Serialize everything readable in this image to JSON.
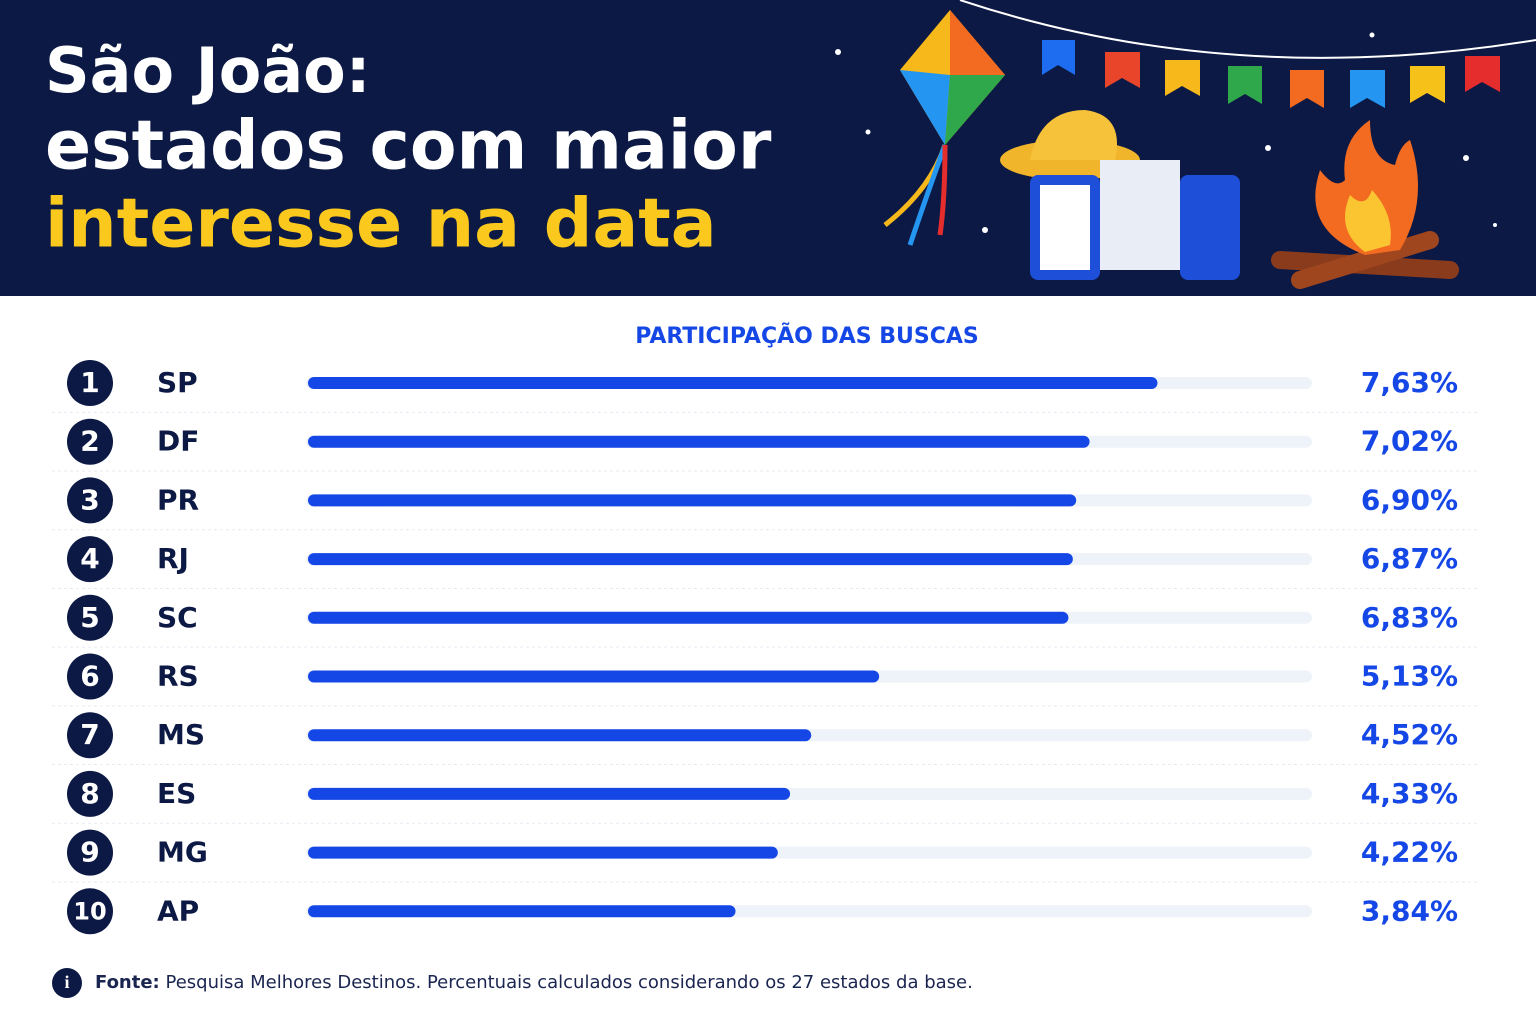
{
  "chart_data": {
    "type": "bar",
    "orientation": "horizontal",
    "title": [
      "São João:",
      "estados com maior",
      "interesse na data"
    ],
    "subtitle": "PARTICIPAÇÃO DAS BUSCAS",
    "ranks": [
      1,
      2,
      3,
      4,
      5,
      6,
      7,
      8,
      9,
      10
    ],
    "categories": [
      "SP",
      "DF",
      "PR",
      "RJ",
      "SC",
      "RS",
      "MS",
      "ES",
      "MG",
      "AP"
    ],
    "values": [
      7.63,
      7.02,
      6.9,
      6.87,
      6.83,
      5.13,
      4.52,
      4.33,
      4.22,
      3.84
    ],
    "value_labels": [
      "7,63%",
      "7,02%",
      "6,90%",
      "6,87%",
      "6,83%",
      "5,13%",
      "4,52%",
      "4,33%",
      "4,22%",
      "3,84%"
    ],
    "color": "#1447e6",
    "xlim": [
      0,
      9
    ],
    "source": {
      "label": "Fonte:",
      "text": "Pesquisa Melhores Destinos. Percentuais calculados considerando os 27 estados da base."
    }
  }
}
